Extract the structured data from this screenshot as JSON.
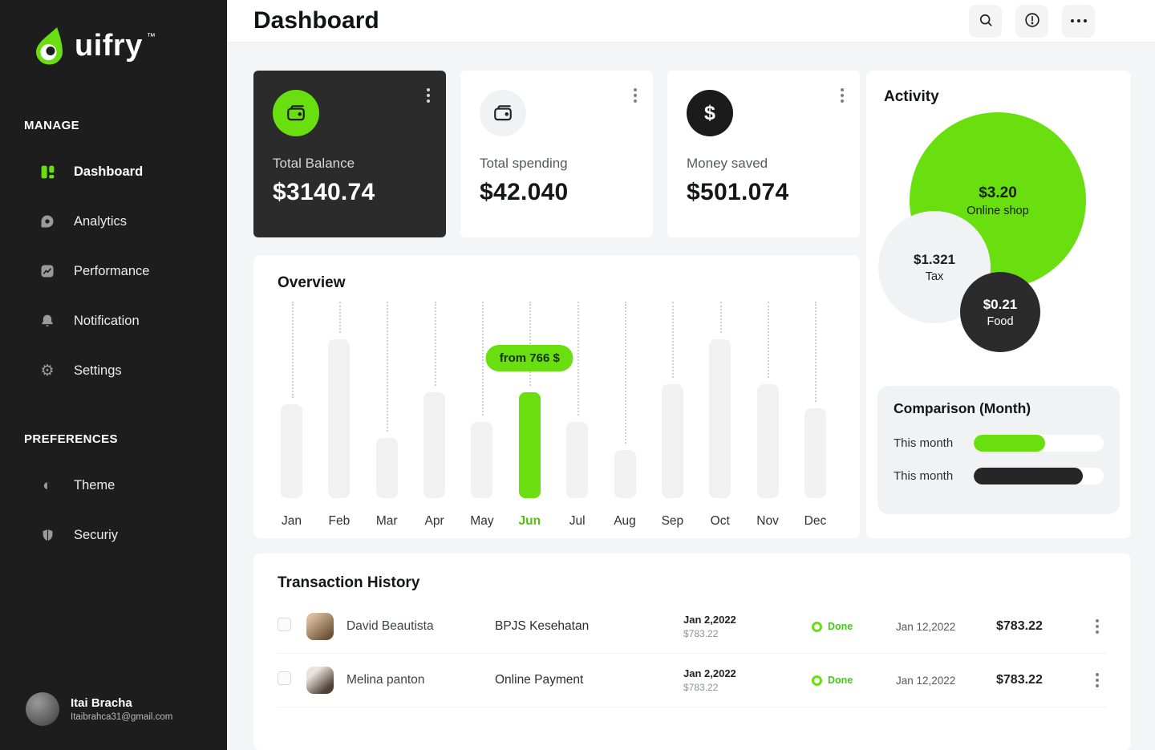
{
  "colors": {
    "accent": "#6ADF10",
    "dark": "#262626",
    "sidebar_bg": "#1D1D1E",
    "card_dark": "#2B2B2B",
    "page_bg": "#F4F5F6",
    "done": "#44C718"
  },
  "sidebar": {
    "logo_text": "uifry",
    "logo_tm": "™",
    "sections": [
      {
        "label": "MANAGE",
        "items": [
          {
            "label": "Dashboard",
            "icon": "dashboard-icon",
            "active": true
          },
          {
            "label": "Analytics",
            "icon": "analytics-icon",
            "active": false
          },
          {
            "label": "Performance",
            "icon": "performance-icon",
            "active": false
          },
          {
            "label": "Notification",
            "icon": "notification-icon",
            "active": false
          },
          {
            "label": "Settings",
            "icon": "settings-icon",
            "active": false
          }
        ]
      },
      {
        "label": "PREFERENCES",
        "items": [
          {
            "label": "Theme",
            "icon": "theme-icon",
            "active": false
          },
          {
            "label": "Securiy",
            "icon": "security-icon",
            "active": false
          }
        ]
      }
    ],
    "user": {
      "name": "Itai Bracha",
      "email": "Itaibrahca31@gmail.com"
    }
  },
  "header": {
    "title": "Dashboard",
    "actions": [
      "search-icon",
      "alert-icon",
      "more-icon"
    ]
  },
  "stats": [
    {
      "label": "Total Balance",
      "value": "$3140.74",
      "icon": "wallet-icon",
      "variant": "dark"
    },
    {
      "label": "Total spending",
      "value": "$42.040",
      "icon": "wallet-icon",
      "variant": "light"
    },
    {
      "label": "Money saved",
      "value": "$501.074",
      "icon": "dollar-icon",
      "icon_glyph": "$",
      "variant": "light"
    }
  ],
  "overview": {
    "title": "Overview"
  },
  "chart_data": {
    "type": "bar",
    "title": "Overview",
    "categories": [
      "Jan",
      "Feb",
      "Mar",
      "Apr",
      "May",
      "Jun",
      "Jul",
      "Aug",
      "Sep",
      "Oct",
      "Nov",
      "Dec"
    ],
    "values": [
      117,
      198,
      75,
      132,
      95,
      132,
      95,
      60,
      142,
      198,
      142,
      112
    ],
    "value_unit": "relative bar height (axis unlabeled in UI)",
    "ylim": [
      0,
      245
    ],
    "highlight": {
      "index": 5,
      "category": "Jun",
      "tooltip": "from 766 $"
    },
    "grid": "dotted vertical leader lines above each bar",
    "legend": "none",
    "xlabel": "",
    "ylabel": ""
  },
  "activity": {
    "title": "Activity",
    "bubbles": [
      {
        "value": "$3.20",
        "label": "Online shop",
        "color": "accent"
      },
      {
        "value": "$1.321",
        "label": "Tax",
        "color": "gray"
      },
      {
        "value": "$0.21",
        "label": "Food",
        "color": "dark"
      }
    ]
  },
  "comparison": {
    "title": "Comparison (Month)",
    "rows": [
      {
        "label": "This month",
        "percent": 55,
        "color": "green"
      },
      {
        "label": "This month",
        "percent": 84,
        "color": "dark"
      }
    ]
  },
  "transactions": {
    "title": "Transaction History",
    "rows": [
      {
        "name": "David Beautista",
        "description": "BPJS Kesehatan",
        "date": "Jan 2,2022",
        "sub_amount": "$783.22",
        "status": "Done",
        "date_paid": "Jan 12,2022",
        "amount": "$783.22"
      },
      {
        "name": "Melina panton",
        "description": "Online Payment",
        "date": "Jan 2,2022",
        "sub_amount": "$783.22",
        "status": "Done",
        "date_paid": "Jan 12,2022",
        "amount": "$783.22"
      }
    ]
  }
}
